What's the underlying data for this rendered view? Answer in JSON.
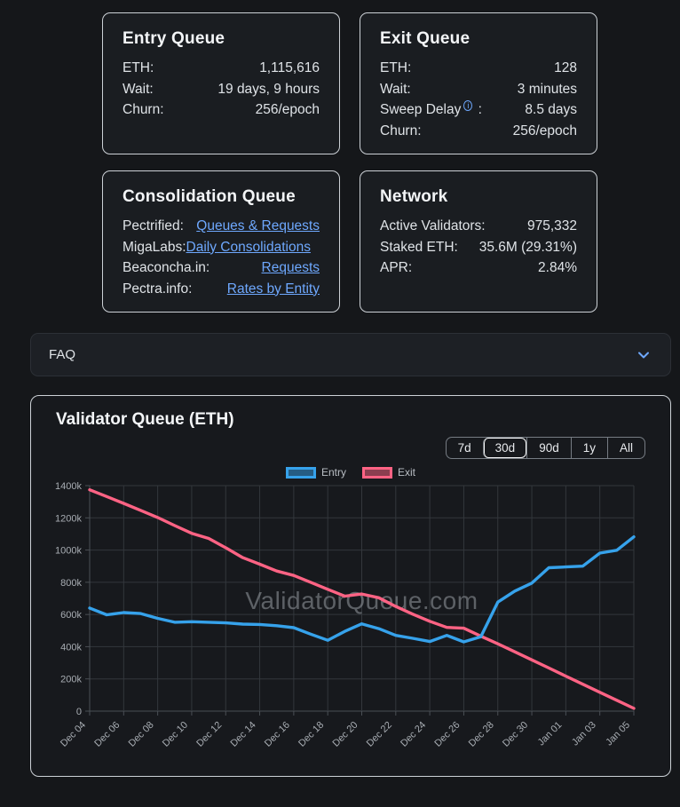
{
  "colors": {
    "entry_line": "#36a2eb",
    "exit_line": "#ff6384",
    "entry_fill": "#265d84",
    "exit_fill": "#8b3e50",
    "link": "#6ea8fe",
    "grid": "#33373c",
    "axis": "#4a4f55",
    "tick_text": "#a8adb3",
    "watermark": "#9196 9c"
  },
  "cards": {
    "entry_queue": {
      "title": "Entry Queue",
      "rows": [
        {
          "label": "ETH:",
          "value": "1,115,616"
        },
        {
          "label": "Wait:",
          "value": "19 days, 9 hours"
        },
        {
          "label": "Churn:",
          "value": "256/epoch"
        }
      ]
    },
    "exit_queue": {
      "title": "Exit Queue",
      "rows": [
        {
          "label": "ETH:",
          "value": "128"
        },
        {
          "label": "Wait:",
          "value": "3 minutes"
        }
      ],
      "sweep": {
        "label": "Sweep Delay",
        "icon": "i",
        "colon": " :",
        "value": "8.5 days"
      },
      "churn": {
        "label": "Churn:",
        "value": "256/epoch"
      }
    },
    "consolidation_queue": {
      "title": "Consolidation Queue",
      "rows": [
        {
          "label": "Pectrified: ",
          "link": "Queues & Requests"
        },
        {
          "label": "MigaLabs:",
          "link": "Daily Consolidations"
        },
        {
          "label": "Beaconcha.in:",
          "link": "Requests"
        },
        {
          "label": "Pectra.info:",
          "link": "Rates by Entity"
        }
      ]
    },
    "network": {
      "title": "Network",
      "rows": [
        {
          "label": "Active Validators:",
          "value": "975,332"
        },
        {
          "label": "Staked ETH:",
          "value": "35.6M (29.31%)"
        },
        {
          "label": "APR:",
          "value": "2.84%"
        }
      ]
    }
  },
  "faq": {
    "label": "FAQ"
  },
  "chart": {
    "title": "Validator Queue (ETH)",
    "ranges": [
      {
        "label": "7d"
      },
      {
        "label": "30d"
      },
      {
        "label": "90d"
      },
      {
        "label": "1y"
      },
      {
        "label": "All"
      }
    ],
    "selected_range": "30d",
    "watermark": "ValidatorQueue.com",
    "legend": [
      {
        "label": "Entry"
      },
      {
        "label": "Exit"
      }
    ]
  },
  "chart_data": {
    "type": "line",
    "title": "Validator Queue (ETH)",
    "unit": "thousands of ETH",
    "ylim_k": [
      0,
      1400
    ],
    "yticks": [
      {
        "v": 0,
        "label": "0"
      },
      {
        "v": 200,
        "label": "200k"
      },
      {
        "v": 400,
        "label": "400k"
      },
      {
        "v": 600,
        "label": "600k"
      },
      {
        "v": 800,
        "label": "800k"
      },
      {
        "v": 1000,
        "label": "1000k"
      },
      {
        "v": 1200,
        "label": "1200k"
      },
      {
        "v": 1400,
        "label": "1400k"
      }
    ],
    "x": [
      "Dec 04",
      "Dec 05",
      "Dec 06",
      "Dec 07",
      "Dec 08",
      "Dec 09",
      "Dec 10",
      "Dec 11",
      "Dec 12",
      "Dec 13",
      "Dec 14",
      "Dec 15",
      "Dec 16",
      "Dec 17",
      "Dec 18",
      "Dec 19",
      "Dec 20",
      "Dec 21",
      "Dec 22",
      "Dec 23",
      "Dec 24",
      "Dec 25",
      "Dec 26",
      "Dec 27",
      "Dec 28",
      "Dec 29",
      "Dec 30",
      "Dec 31",
      "Jan 01",
      "Jan 02",
      "Jan 03",
      "Jan 04",
      "Jan 05"
    ],
    "x_tick_step": 2,
    "grid": true,
    "legend_position": "top",
    "series": [
      {
        "name": "Entry",
        "color": "#36a2eb",
        "values_k": [
          640,
          598,
          612,
          606,
          576,
          552,
          555,
          552,
          548,
          540,
          538,
          530,
          518,
          478,
          440,
          495,
          542,
          512,
          470,
          452,
          432,
          470,
          430,
          462,
          677,
          745,
          795,
          890,
          895,
          900,
          981,
          999,
          1082
        ]
      },
      {
        "name": "Exit",
        "color": "#ff6384",
        "values_k": [
          1374,
          1332,
          1290,
          1246,
          1202,
          1152,
          1104,
          1072,
          1014,
          953,
          912,
          870,
          842,
          800,
          756,
          714,
          727,
          704,
          650,
          602,
          558,
          520,
          515,
          465,
          418,
          368,
          318,
          268,
          217,
          167,
          117,
          67,
          17
        ]
      }
    ]
  }
}
